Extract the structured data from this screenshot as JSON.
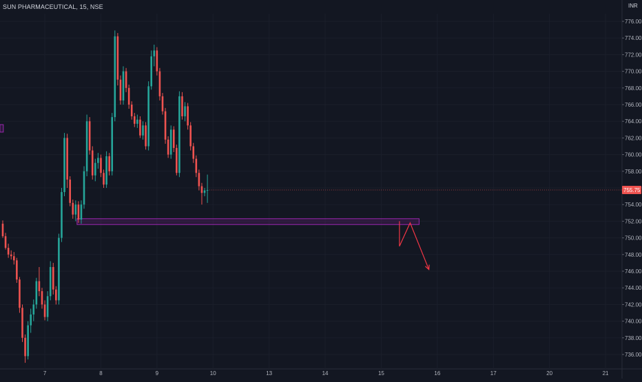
{
  "header": {
    "symbol_line": "SUN PHARMACEUTICAL, 15, NSE",
    "currency": "INR"
  },
  "colors": {
    "background": "#131722",
    "up": "#26a69a",
    "down": "#ef5350",
    "zone": "#9c27b0",
    "arrow": "#f23645",
    "axis_text": "#b2b5be",
    "price_tag": "#ef5350"
  },
  "chart_data": {
    "type": "candlestick",
    "symbol": "SUN PHARMACEUTICAL",
    "interval": "15",
    "exchange": "NSE",
    "ylim": [
      734.5,
      778.0
    ],
    "yticks": [
      "736.00",
      "738.00",
      "740.00",
      "742.00",
      "744.00",
      "746.00",
      "748.00",
      "750.00",
      "752.00",
      "754.00",
      "756.00",
      "758.00",
      "760.00",
      "762.00",
      "764.00",
      "766.00",
      "768.00",
      "770.00",
      "772.00",
      "774.00",
      "776.00"
    ],
    "xticks": [
      {
        "label": "7",
        "bar": 15
      },
      {
        "label": "8",
        "bar": 35
      },
      {
        "label": "9",
        "bar": 55
      },
      {
        "label": "10",
        "bar": 75
      },
      {
        "label": "13",
        "bar": 95
      },
      {
        "label": "14",
        "bar": 115
      },
      {
        "label": "15",
        "bar": 135
      },
      {
        "label": "16",
        "bar": 155
      },
      {
        "label": "17",
        "bar": 175
      },
      {
        "label": "20",
        "bar": 195
      },
      {
        "label": "21",
        "bar": 215
      }
    ],
    "last_price": "755.75",
    "last_price_value": 755.75,
    "candles": [
      [
        751.7,
        752.1,
        750.0,
        750.2
      ],
      [
        750.2,
        750.6,
        748.6,
        748.8
      ],
      [
        748.8,
        749.3,
        747.6,
        748.0
      ],
      [
        748.0,
        748.5,
        747.4,
        747.8
      ],
      [
        747.8,
        748.3,
        746.8,
        747.3
      ],
      [
        747.3,
        747.6,
        744.6,
        745.0
      ],
      [
        745.0,
        745.3,
        741.0,
        741.6
      ],
      [
        741.6,
        742.0,
        737.5,
        738.0
      ],
      [
        738.0,
        738.4,
        735.0,
        735.8
      ],
      [
        735.8,
        740.0,
        735.4,
        739.5
      ],
      [
        739.5,
        741.5,
        738.6,
        740.8
      ],
      [
        740.8,
        742.6,
        740.0,
        742.0
      ],
      [
        742.0,
        745.2,
        741.5,
        744.8
      ],
      [
        744.8,
        746.5,
        743.0,
        743.6
      ],
      [
        743.6,
        744.0,
        741.5,
        742.0
      ],
      [
        742.0,
        742.5,
        740.1,
        740.5
      ],
      [
        740.5,
        743.6,
        740.0,
        743.0
      ],
      [
        743.0,
        747.2,
        742.5,
        746.5
      ],
      [
        746.5,
        747.0,
        743.2,
        743.8
      ],
      [
        743.8,
        744.2,
        742.0,
        742.5
      ],
      [
        742.5,
        750.5,
        742.0,
        750.0
      ],
      [
        750.0,
        756.0,
        749.5,
        755.5
      ],
      [
        755.5,
        762.6,
        755.0,
        762.0
      ],
      [
        762.0,
        762.5,
        756.0,
        757.0
      ],
      [
        757.0,
        757.4,
        753.8,
        754.2
      ],
      [
        754.2,
        754.6,
        752.3,
        752.8
      ],
      [
        752.8,
        754.5,
        752.0,
        754.0
      ],
      [
        754.0,
        754.4,
        751.8,
        752.2
      ],
      [
        752.2,
        754.5,
        751.7,
        754.0
      ],
      [
        754.0,
        758.6,
        753.5,
        758.0
      ],
      [
        758.0,
        764.8,
        757.4,
        764.0
      ],
      [
        764.0,
        764.5,
        760.0,
        760.5
      ],
      [
        760.5,
        761.0,
        757.0,
        757.5
      ],
      [
        757.5,
        759.5,
        756.8,
        759.0
      ],
      [
        759.0,
        760.2,
        758.3,
        759.6
      ],
      [
        759.6,
        760.0,
        757.3,
        757.8
      ],
      [
        757.8,
        758.2,
        756.0,
        756.4
      ],
      [
        756.4,
        760.4,
        756.0,
        759.8
      ],
      [
        759.8,
        760.2,
        757.5,
        758.0
      ],
      [
        758.0,
        765.0,
        757.5,
        764.5
      ],
      [
        764.5,
        774.9,
        764.0,
        774.2
      ],
      [
        774.2,
        774.6,
        768.3,
        769.0
      ],
      [
        769.0,
        769.5,
        766.0,
        766.5
      ],
      [
        766.5,
        770.6,
        766.0,
        770.0
      ],
      [
        770.0,
        770.4,
        767.5,
        768.0
      ],
      [
        768.0,
        768.4,
        765.5,
        766.0
      ],
      [
        766.0,
        766.4,
        764.2,
        764.6
      ],
      [
        764.6,
        765.0,
        763.3,
        763.7
      ],
      [
        763.7,
        764.8,
        763.2,
        764.2
      ],
      [
        764.2,
        764.6,
        762.0,
        762.3
      ],
      [
        762.3,
        764.0,
        761.8,
        763.5
      ],
      [
        763.5,
        763.9,
        760.6,
        761.0
      ],
      [
        761.0,
        768.8,
        760.5,
        768.2
      ],
      [
        768.2,
        772.5,
        767.8,
        771.8
      ],
      [
        771.8,
        773.2,
        770.6,
        772.5
      ],
      [
        772.5,
        772.9,
        769.5,
        770.0
      ],
      [
        770.0,
        770.4,
        766.5,
        767.0
      ],
      [
        767.0,
        767.4,
        764.8,
        765.2
      ],
      [
        765.2,
        765.6,
        761.3,
        761.8
      ],
      [
        761.8,
        762.2,
        759.6,
        760.0
      ],
      [
        760.0,
        763.5,
        759.5,
        763.0
      ],
      [
        763.0,
        763.4,
        760.3,
        760.8
      ],
      [
        760.8,
        761.2,
        757.5,
        757.8
      ],
      [
        757.8,
        767.6,
        757.3,
        767.0
      ],
      [
        767.0,
        767.5,
        764.2,
        764.6
      ],
      [
        764.6,
        766.3,
        764.0,
        765.8
      ],
      [
        765.8,
        766.2,
        763.0,
        763.5
      ],
      [
        763.5,
        763.9,
        760.5,
        761.0
      ],
      [
        761.0,
        761.4,
        759.0,
        759.5
      ],
      [
        759.5,
        759.9,
        757.3,
        757.8
      ],
      [
        757.8,
        758.2,
        755.7,
        756.2
      ],
      [
        756.2,
        756.6,
        754.0,
        755.4
      ],
      [
        755.4,
        756.0,
        755.0,
        755.7
      ],
      [
        755.7,
        757.6,
        754.2,
        755.75
      ]
    ],
    "zones": [
      {
        "label": "",
        "price_top": 752.3,
        "price_bottom": 751.6,
        "bar_start": 26.5,
        "bar_end": 148.5
      },
      {
        "label": "",
        "price_top": 763.6,
        "price_bottom": 762.7,
        "bar_start": -1,
        "bar_end": 0.2
      }
    ],
    "projection": [
      [
        141.5,
        752.0
      ],
      [
        141.5,
        749.0
      ],
      [
        145.3,
        751.8
      ],
      [
        152.0,
        746.2
      ]
    ]
  }
}
